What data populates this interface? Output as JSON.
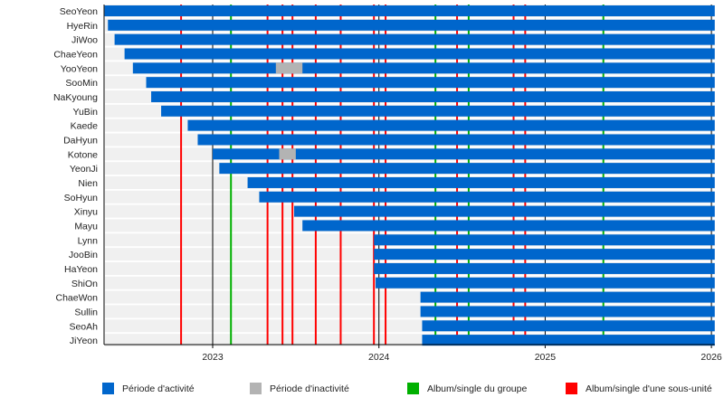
{
  "chart_data": {
    "type": "timeline",
    "title": "",
    "xlabel": "",
    "ylabel": "",
    "xlim": [
      2022.35,
      2026.02
    ],
    "x_ticks": [
      "2023",
      "2024",
      "2025",
      "2026"
    ],
    "x_tick_values": [
      2023,
      2024,
      2025,
      2026
    ],
    "grid": true,
    "colors": {
      "active": "#0066cc",
      "inactive": "#b3b3b3",
      "group_release": "#00b000",
      "subunit_release": "#ff0000",
      "row_background": "#f0f0f0"
    },
    "members": [
      {
        "name": "SeoYeon",
        "start": 2022.35,
        "inactive": []
      },
      {
        "name": "HyeRin",
        "start": 2022.37,
        "inactive": []
      },
      {
        "name": "JiWoo",
        "start": 2022.41,
        "inactive": []
      },
      {
        "name": "ChaeYeon",
        "start": 2022.47,
        "inactive": []
      },
      {
        "name": "YooYeon",
        "start": 2022.52,
        "inactive": [
          [
            2023.38,
            2023.54
          ]
        ]
      },
      {
        "name": "SooMin",
        "start": 2022.6,
        "inactive": []
      },
      {
        "name": "NaKyoung",
        "start": 2022.63,
        "inactive": []
      },
      {
        "name": "YuBin",
        "start": 2022.69,
        "inactive": []
      },
      {
        "name": "Kaede",
        "start": 2022.85,
        "inactive": []
      },
      {
        "name": "DaHyun",
        "start": 2022.91,
        "inactive": []
      },
      {
        "name": "Kotone",
        "start": 2023.0,
        "inactive": [
          [
            2023.4,
            2023.5
          ]
        ]
      },
      {
        "name": "YeonJi",
        "start": 2023.04,
        "inactive": []
      },
      {
        "name": "Nien",
        "start": 2023.21,
        "inactive": []
      },
      {
        "name": "SoHyun",
        "start": 2023.28,
        "inactive": []
      },
      {
        "name": "Xinyu",
        "start": 2023.49,
        "inactive": []
      },
      {
        "name": "Mayu",
        "start": 2023.54,
        "inactive": []
      },
      {
        "name": "Lynn",
        "start": 2023.97,
        "inactive": []
      },
      {
        "name": "JooBin",
        "start": 2023.97,
        "inactive": []
      },
      {
        "name": "HaYeon",
        "start": 2023.97,
        "inactive": []
      },
      {
        "name": "ShiOn",
        "start": 2023.98,
        "inactive": []
      },
      {
        "name": "ChaeWon",
        "start": 2024.25,
        "inactive": []
      },
      {
        "name": "Sullin",
        "start": 2024.25,
        "inactive": []
      },
      {
        "name": "SeoAh",
        "start": 2024.26,
        "inactive": []
      },
      {
        "name": "JiYeon",
        "start": 2024.26,
        "inactive": []
      }
    ],
    "end": 2026.02,
    "group_releases": [
      2023.11,
      2024.34,
      2024.54,
      2025.35
    ],
    "subunit_releases": [
      2022.81,
      2023.33,
      2023.42,
      2023.48,
      2023.62,
      2023.77,
      2023.97,
      2024.04,
      2024.47,
      2024.81,
      2024.88
    ],
    "legend": {
      "placement": "bottom",
      "items": [
        {
          "label": "Période d'activité",
          "color": "#0066cc"
        },
        {
          "label": "Période d'inactivité",
          "color": "#b3b3b3"
        },
        {
          "label": "Album/single du groupe",
          "color": "#00b000"
        },
        {
          "label": "Album/single d'une sous-unité",
          "color": "#ff0000"
        }
      ]
    }
  }
}
